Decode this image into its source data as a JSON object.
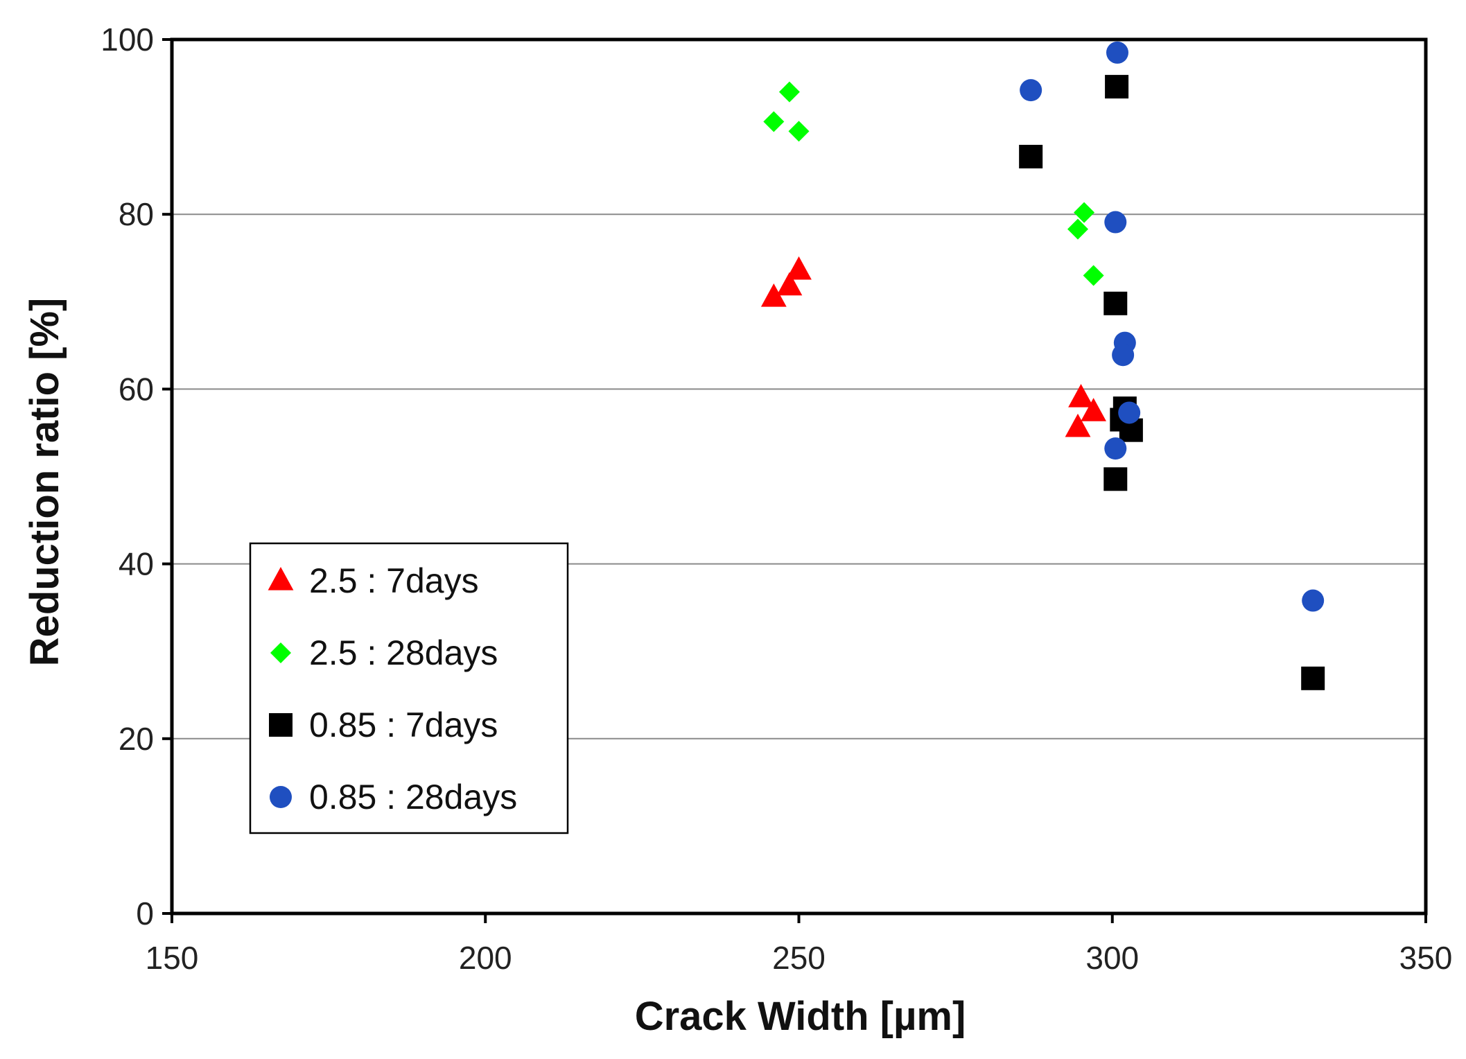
{
  "chart_data": {
    "type": "scatter",
    "title": "",
    "xlabel": "Crack Width [µm]",
    "ylabel": "Reduction ratio [%]",
    "xlim": [
      150,
      350
    ],
    "ylim": [
      0,
      100
    ],
    "xticks": [
      "150",
      "200",
      "250",
      "300",
      "350"
    ],
    "yticks": [
      "0",
      "20",
      "40",
      "60",
      "80",
      "100"
    ],
    "x_tick_values": [
      150,
      200,
      250,
      300,
      350
    ],
    "y_tick_values": [
      0,
      20,
      40,
      60,
      80,
      100
    ],
    "grid": "horizontal",
    "legend_position": "left-middle",
    "series": [
      {
        "name": "2.5 : 7days",
        "marker": "triangle",
        "color": "#ff0000",
        "points": [
          [
            246,
            70.5
          ],
          [
            248.5,
            71.8
          ],
          [
            250,
            73.6
          ],
          [
            295,
            59
          ],
          [
            294.5,
            55.6
          ],
          [
            297,
            57.4
          ]
        ]
      },
      {
        "name": "2.5 : 28days",
        "marker": "diamond",
        "color": "#00ff00",
        "points": [
          [
            246,
            90.6
          ],
          [
            248.5,
            94
          ],
          [
            250,
            89.5
          ],
          [
            295.5,
            80.2
          ],
          [
            294.5,
            78.3
          ],
          [
            297,
            73
          ]
        ]
      },
      {
        "name": "0.85 : 7days",
        "marker": "square",
        "color": "#000000",
        "points": [
          [
            287,
            86.6
          ],
          [
            300.7,
            94.6
          ],
          [
            300.5,
            69.8
          ],
          [
            302,
            57.8
          ],
          [
            301.5,
            56.5
          ],
          [
            303,
            55.3
          ],
          [
            300.5,
            49.7
          ],
          [
            332,
            26.9
          ]
        ]
      },
      {
        "name": "0.85 : 28days",
        "marker": "circle",
        "color": "#1f4fc0",
        "points": [
          [
            287,
            94.2
          ],
          [
            300.8,
            98.5
          ],
          [
            300.5,
            79.1
          ],
          [
            302,
            65.3
          ],
          [
            301.7,
            63.9
          ],
          [
            302.7,
            57.3
          ],
          [
            300.5,
            53.2
          ],
          [
            332,
            35.8
          ]
        ]
      }
    ]
  }
}
